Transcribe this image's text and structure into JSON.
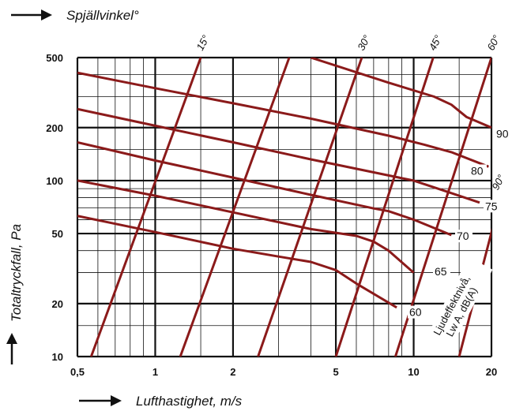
{
  "chart_data": {
    "type": "line",
    "xlabel": "Lufthastighet, m/s",
    "ylabel": "Totaltryckfall, Pa",
    "top_label": "Spjällvinkel°",
    "xscale": "log",
    "yscale": "log",
    "xlim": [
      0.5,
      20
    ],
    "ylim": [
      10,
      500
    ],
    "x_ticks": [
      "0,5",
      "1",
      "2",
      "5",
      "10",
      "20"
    ],
    "x_tick_values": [
      0.5,
      1,
      2,
      5,
      10,
      20
    ],
    "y_ticks": [
      "500",
      "200",
      "100",
      "50",
      "20",
      "10"
    ],
    "y_tick_values": [
      500,
      200,
      100,
      50,
      20,
      10
    ],
    "grid": true,
    "damper_angle_lines": [
      {
        "label": "15°",
        "x_at_10Pa": 0.565,
        "x_at_500Pa": 1.5
      },
      {
        "label": "",
        "x_at_10Pa": 1.25,
        "x_at_500Pa": 3.3
      },
      {
        "label": "30°",
        "x_at_10Pa": 2.5,
        "x_at_500Pa": 6.3
      },
      {
        "label": "45°",
        "x_at_10Pa": 5.0,
        "x_at_500Pa": 11.9
      },
      {
        "label": "60°",
        "x_at_10Pa": 8.5,
        "x_at_500Pa": 20.0
      },
      {
        "label": "90°",
        "x_at_10Pa": 15.0,
        "x_at_500Pa": 30.0
      }
    ],
    "sound_level_title": "Ljudeffektnivå, Lw A, dB(A)",
    "sound_level_curves": [
      {
        "label": "60",
        "points": [
          [
            0.5,
            63
          ],
          [
            1.0,
            51
          ],
          [
            2.0,
            41
          ],
          [
            3.0,
            37
          ],
          [
            4.0,
            34.5
          ],
          [
            5.0,
            31
          ],
          [
            6.0,
            26
          ],
          [
            8.6,
            19
          ]
        ]
      },
      {
        "label": "65",
        "points": [
          [
            0.5,
            100
          ],
          [
            1.0,
            82
          ],
          [
            2.0,
            66
          ],
          [
            4.0,
            53
          ],
          [
            6.0,
            48.5
          ],
          [
            7.0,
            45
          ],
          [
            8.0,
            40
          ],
          [
            10.0,
            30
          ]
        ]
      },
      {
        "label": "70",
        "points": [
          [
            0.5,
            165
          ],
          [
            1.0,
            130
          ],
          [
            2.0,
            104
          ],
          [
            4.0,
            83
          ],
          [
            7.0,
            69.5
          ],
          [
            8.0,
            67
          ],
          [
            10.0,
            60
          ],
          [
            14.0,
            49
          ]
        ]
      },
      {
        "label": "75",
        "points": [
          [
            0.5,
            255
          ],
          [
            1.0,
            205
          ],
          [
            2.0,
            165
          ],
          [
            4.0,
            132
          ],
          [
            8.0,
            107
          ],
          [
            10.0,
            100
          ],
          [
            13.0,
            88
          ],
          [
            18.0,
            75
          ]
        ]
      },
      {
        "label": "80",
        "points": [
          [
            0.5,
            410
          ],
          [
            1.0,
            335
          ],
          [
            2.0,
            275
          ],
          [
            4.0,
            225
          ],
          [
            8.0,
            180
          ],
          [
            11.0,
            160
          ],
          [
            14.0,
            145
          ],
          [
            19.5,
            120
          ]
        ]
      },
      {
        "label": "90",
        "points": [
          [
            4.0,
            500
          ],
          [
            8.0,
            360
          ],
          [
            12.0,
            300
          ],
          [
            14.0,
            270
          ],
          [
            16.0,
            230
          ],
          [
            20.0,
            200
          ]
        ]
      }
    ],
    "level_labels_right": [
      "90",
      "80",
      "75",
      "70",
      "65",
      "60"
    ]
  },
  "colors": {
    "curve": "#8b1a1a",
    "grid": "#111111",
    "background": "#ffffff"
  }
}
